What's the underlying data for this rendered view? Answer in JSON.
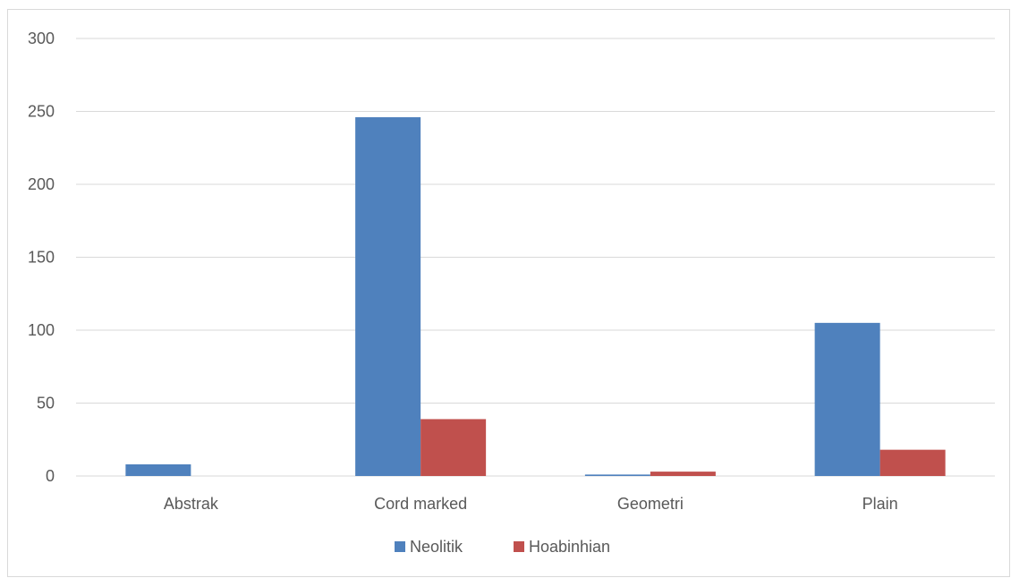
{
  "chart_data": {
    "type": "bar",
    "categories": [
      "Abstrak",
      "Cord marked",
      "Geometri",
      "Plain"
    ],
    "series": [
      {
        "name": "Neolitik",
        "values": [
          8,
          246,
          1,
          105
        ],
        "color": "#4f81bd"
      },
      {
        "name": "Hoabinhian",
        "values": [
          0,
          39,
          3,
          18
        ],
        "color": "#c0504d"
      }
    ],
    "ylim": [
      0,
      300
    ],
    "yticks": [
      0,
      50,
      100,
      150,
      200,
      250,
      300
    ],
    "grid": true,
    "legend_position": "bottom",
    "gridline_color": "#d9d9d9"
  }
}
